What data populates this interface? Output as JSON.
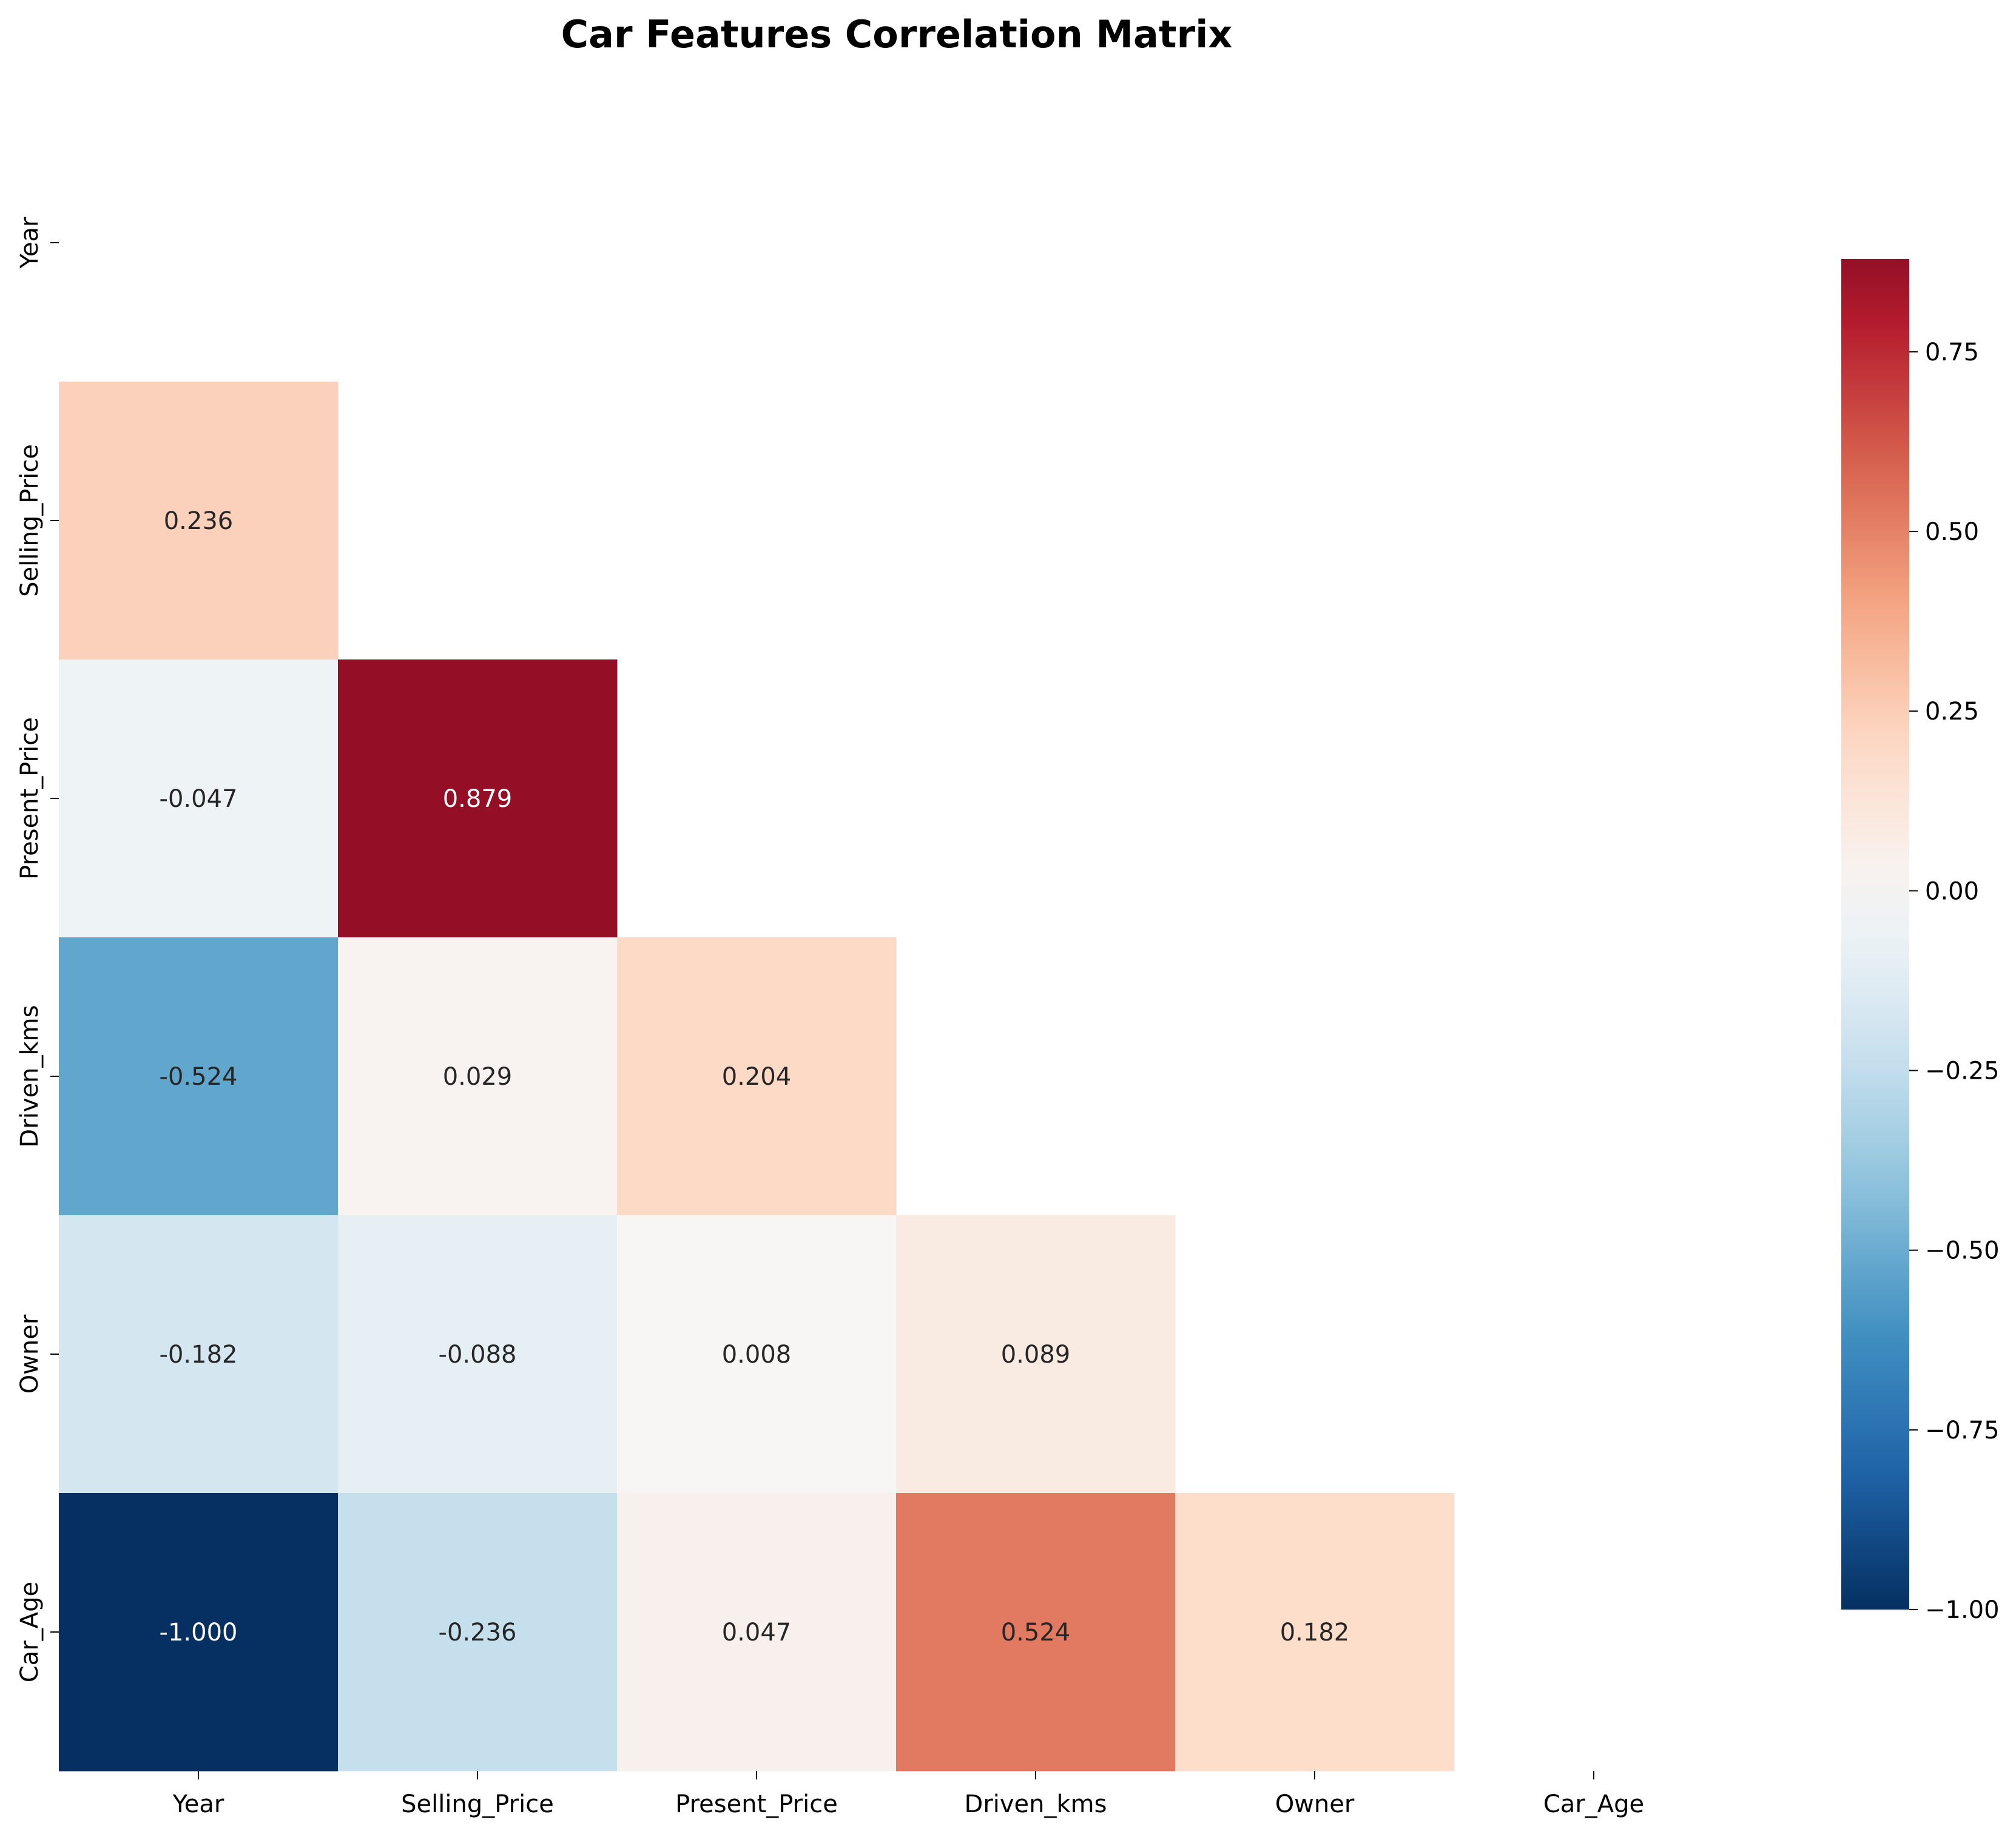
{
  "chart_data": {
    "type": "heatmap",
    "title": "Car Features Correlation Matrix",
    "variables": [
      "Year",
      "Selling_Price",
      "Present_Price",
      "Driven_kms",
      "Owner",
      "Car_Age"
    ],
    "mask": "upper-triangle-and-diagonal",
    "cells": [
      {
        "row": "Selling_Price",
        "col": "Year",
        "value": 0.236,
        "label": "0.236"
      },
      {
        "row": "Present_Price",
        "col": "Year",
        "value": -0.047,
        "label": "-0.047"
      },
      {
        "row": "Present_Price",
        "col": "Selling_Price",
        "value": 0.879,
        "label": "0.879"
      },
      {
        "row": "Driven_kms",
        "col": "Year",
        "value": -0.524,
        "label": "-0.524"
      },
      {
        "row": "Driven_kms",
        "col": "Selling_Price",
        "value": 0.029,
        "label": "0.029"
      },
      {
        "row": "Driven_kms",
        "col": "Present_Price",
        "value": 0.204,
        "label": "0.204"
      },
      {
        "row": "Owner",
        "col": "Year",
        "value": -0.182,
        "label": "-0.182"
      },
      {
        "row": "Owner",
        "col": "Selling_Price",
        "value": -0.088,
        "label": "-0.088"
      },
      {
        "row": "Owner",
        "col": "Present_Price",
        "value": 0.008,
        "label": "0.008"
      },
      {
        "row": "Owner",
        "col": "Driven_kms",
        "value": 0.089,
        "label": "0.089"
      },
      {
        "row": "Car_Age",
        "col": "Year",
        "value": -1.0,
        "label": "-1.000"
      },
      {
        "row": "Car_Age",
        "col": "Selling_Price",
        "value": -0.236,
        "label": "-0.236"
      },
      {
        "row": "Car_Age",
        "col": "Present_Price",
        "value": 0.047,
        "label": "0.047"
      },
      {
        "row": "Car_Age",
        "col": "Driven_kms",
        "value": 0.524,
        "label": "0.524"
      },
      {
        "row": "Car_Age",
        "col": "Owner",
        "value": 0.182,
        "label": "0.182"
      }
    ],
    "colormap": "RdBu_r",
    "colorbar": {
      "range": [
        -1.0,
        0.879
      ],
      "ticks": [
        -1.0,
        -0.75,
        -0.5,
        -0.25,
        0.0,
        0.25,
        0.5,
        0.75
      ],
      "tick_labels": [
        "−1.00",
        "−0.75",
        "−0.50",
        "−0.25",
        "0.00",
        "0.25",
        "0.50",
        "0.75"
      ]
    },
    "grid": false,
    "colorbar_placement": "right"
  }
}
